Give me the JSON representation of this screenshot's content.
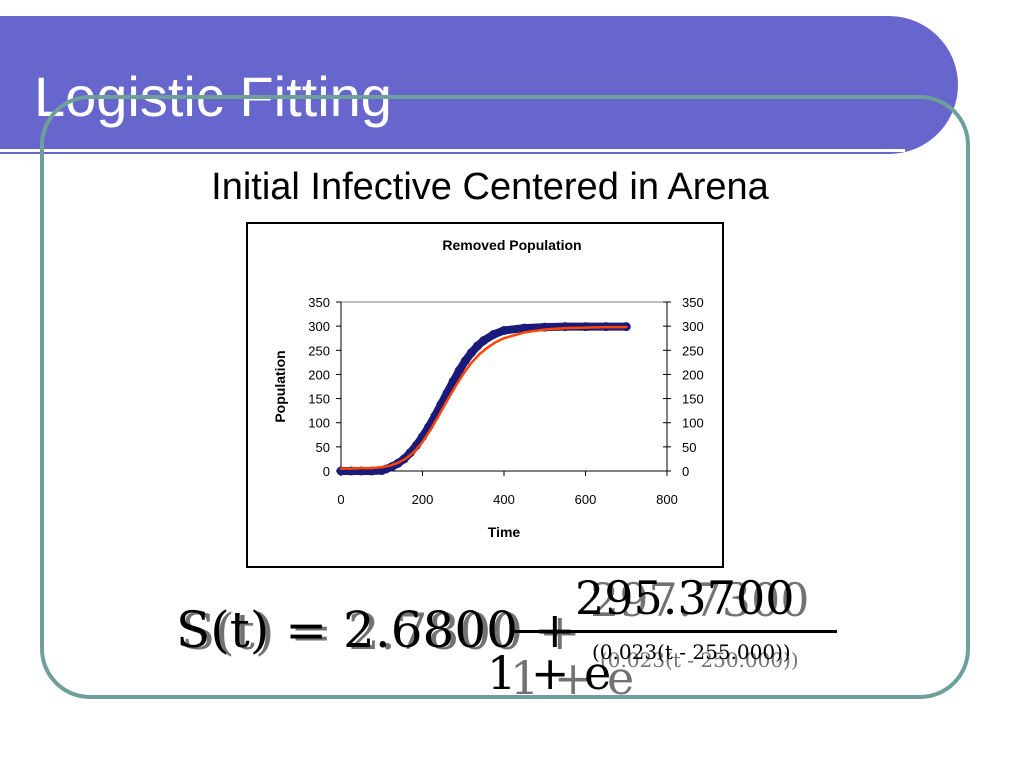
{
  "slide": {
    "title": "Logistic Fitting",
    "subtitle": "Initial Infective Centered in Arena"
  },
  "equation": {
    "lhs": "S(t) = 2.6800 + ",
    "lhs_overlap": "S(t) = 2.7800 + ",
    "numerator": "295.3700",
    "numerator_overlap": "297.7300",
    "denominator": "1 + e",
    "denominator_overlap": "1 + e",
    "exponent": "(0.023(t - 255.000))",
    "exponent_overlap": "(0.023(t - 250.000))"
  },
  "colors": {
    "title_bar": "#6666cc",
    "frame": "#6f9f9a",
    "data_series": "#1a1a7a",
    "fit_series": "#ff4500"
  },
  "chart_data": {
    "type": "line",
    "title": "Removed Population",
    "xlabel": "Time",
    "ylabel": "Population",
    "xlim": [
      0,
      800
    ],
    "ylim": [
      0,
      350
    ],
    "x_ticks": [
      0,
      200,
      400,
      600,
      800
    ],
    "y_ticks": [
      0,
      50,
      100,
      150,
      200,
      250,
      300,
      350
    ],
    "secondary_y_ticks": [
      0,
      50,
      100,
      150,
      200,
      250,
      300,
      350
    ],
    "grid": false,
    "series": [
      {
        "role": "data",
        "x": [
          0,
          25,
          50,
          75,
          100,
          110,
          125,
          140,
          155,
          170,
          185,
          200,
          215,
          230,
          245,
          260,
          275,
          290,
          305,
          320,
          335,
          350,
          375,
          400,
          450,
          500,
          550,
          600,
          650,
          700
        ],
        "y": [
          0,
          0,
          0,
          0,
          1,
          4,
          9,
          16,
          25,
          38,
          53,
          71,
          91,
          113,
          137,
          161,
          185,
          208,
          228,
          245,
          259,
          270,
          283,
          291,
          296,
          298,
          299,
          299,
          299,
          299
        ]
      },
      {
        "role": "fit",
        "x": [
          0,
          25,
          50,
          75,
          100,
          120,
          140,
          160,
          180,
          200,
          220,
          240,
          260,
          280,
          300,
          320,
          340,
          360,
          380,
          400,
          450,
          500,
          550,
          600,
          650,
          700
        ],
        "y": [
          5,
          5,
          6,
          6,
          8,
          11,
          17,
          26,
          40,
          60,
          86,
          115,
          145,
          174,
          201,
          224,
          242,
          256,
          267,
          275,
          287,
          293,
          296,
          297,
          298,
          298
        ]
      }
    ]
  }
}
